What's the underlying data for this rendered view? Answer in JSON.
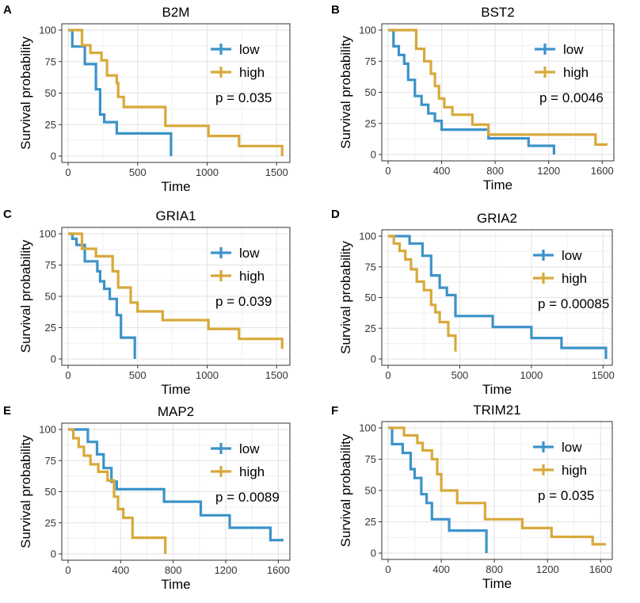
{
  "colors": {
    "low": "#3c93c9",
    "high": "#d8a93a",
    "grid": "#e6e6e6",
    "frame": "#333333",
    "text": "#000000"
  },
  "chart_data": [
    {
      "type": "line",
      "step": true,
      "panel": "A",
      "title": "B2M",
      "xlabel": "Time",
      "ylabel": "Survival probability",
      "xlim": [
        0,
        1550
      ],
      "ylim": [
        0,
        100
      ],
      "xticks": [
        0,
        500,
        1000,
        1500
      ],
      "yticks": [
        0,
        25,
        50,
        75,
        100
      ],
      "legend": "top-right",
      "pvalue": "p = 0.035",
      "series": [
        {
          "name": "low",
          "x": [
            0,
            30,
            120,
            200,
            230,
            260,
            300,
            350,
            740
          ],
          "y": [
            100,
            87,
            73,
            53,
            33,
            27,
            27,
            18,
            0
          ]
        },
        {
          "name": "high",
          "x": [
            0,
            100,
            160,
            240,
            280,
            350,
            360,
            400,
            700,
            1010,
            1230,
            1540
          ],
          "y": [
            100,
            88,
            82,
            76,
            64,
            58,
            47,
            39,
            24,
            16,
            8,
            0
          ]
        }
      ]
    },
    {
      "type": "line",
      "step": true,
      "panel": "B",
      "title": "BST2",
      "xlabel": "Time",
      "ylabel": "Survival probability",
      "xlim": [
        0,
        1640
      ],
      "ylim": [
        0,
        100
      ],
      "xticks": [
        0,
        400,
        800,
        1200,
        1600
      ],
      "yticks": [
        0,
        25,
        50,
        75,
        100
      ],
      "legend": "top-right",
      "pvalue": "p = 0.0046",
      "series": [
        {
          "name": "low",
          "x": [
            0,
            40,
            80,
            120,
            150,
            200,
            250,
            300,
            350,
            400,
            750,
            1050,
            1240
          ],
          "y": [
            100,
            87,
            80,
            73,
            60,
            47,
            40,
            33,
            27,
            20,
            13,
            7,
            0
          ]
        },
        {
          "name": "high",
          "x": [
            0,
            210,
            270,
            320,
            350,
            380,
            420,
            480,
            630,
            750,
            1550,
            1640
          ],
          "y": [
            100,
            85,
            75,
            65,
            55,
            45,
            38,
            32,
            24,
            16,
            8,
            8
          ]
        }
      ]
    },
    {
      "type": "line",
      "step": true,
      "panel": "C",
      "title": "GRIA1",
      "xlabel": "Time",
      "ylabel": "Survival probability",
      "xlim": [
        0,
        1550
      ],
      "ylim": [
        0,
        100
      ],
      "xticks": [
        0,
        500,
        1000,
        1500
      ],
      "yticks": [
        0,
        25,
        50,
        75,
        100
      ],
      "legend": "top-right",
      "pvalue": "p = 0.039",
      "series": [
        {
          "name": "low",
          "x": [
            0,
            30,
            60,
            120,
            210,
            230,
            260,
            300,
            350,
            380,
            480
          ],
          "y": [
            100,
            96,
            91,
            78,
            70,
            62,
            56,
            48,
            35,
            17,
            0
          ]
        },
        {
          "name": "high",
          "x": [
            0,
            100,
            200,
            320,
            360,
            450,
            500,
            680,
            1010,
            1230,
            1540
          ],
          "y": [
            100,
            88,
            82,
            70,
            57,
            45,
            38,
            31,
            24,
            16,
            8
          ]
        }
      ]
    },
    {
      "type": "line",
      "step": true,
      "panel": "D",
      "title": "GRIA2",
      "xlabel": "Time",
      "ylabel": "Survival probability",
      "xlim": [
        0,
        1520
      ],
      "ylim": [
        0,
        100
      ],
      "xticks": [
        0,
        500,
        1000,
        1500
      ],
      "yticks": [
        0,
        25,
        50,
        75,
        100
      ],
      "legend": "top-right",
      "pvalue": "p = 0.00085",
      "series": [
        {
          "name": "low",
          "x": [
            0,
            150,
            240,
            300,
            360,
            410,
            470,
            730,
            1000,
            1210,
            1520
          ],
          "y": [
            100,
            94,
            84,
            68,
            58,
            52,
            35,
            26,
            17,
            9,
            0
          ]
        },
        {
          "name": "high",
          "x": [
            0,
            40,
            80,
            120,
            160,
            200,
            250,
            300,
            330,
            360,
            420,
            470
          ],
          "y": [
            100,
            94,
            88,
            81,
            73,
            63,
            56,
            44,
            38,
            30,
            19,
            6
          ]
        }
      ]
    },
    {
      "type": "line",
      "step": true,
      "panel": "E",
      "title": "MAP2",
      "xlabel": "Time",
      "ylabel": "Survival probability",
      "xlim": [
        0,
        1640
      ],
      "ylim": [
        0,
        100
      ],
      "xticks": [
        0,
        400,
        800,
        1200,
        1600
      ],
      "yticks": [
        0,
        25,
        50,
        75,
        100
      ],
      "legend": "top-right",
      "pvalue": "p = 0.0089",
      "series": [
        {
          "name": "low",
          "x": [
            0,
            150,
            220,
            270,
            330,
            370,
            730,
            1010,
            1230,
            1540,
            1640
          ],
          "y": [
            100,
            90,
            80,
            69,
            58,
            52,
            42,
            31,
            21,
            11,
            11
          ]
        },
        {
          "name": "high",
          "x": [
            0,
            40,
            80,
            120,
            170,
            230,
            300,
            350,
            380,
            420,
            490,
            740
          ],
          "y": [
            100,
            93,
            86,
            79,
            72,
            66,
            59,
            46,
            36,
            29,
            13,
            0
          ]
        }
      ]
    },
    {
      "type": "line",
      "step": true,
      "panel": "F",
      "title": "TRIM21",
      "xlabel": "Time",
      "ylabel": "Survival probability",
      "xlim": [
        0,
        1640
      ],
      "ylim": [
        0,
        100
      ],
      "xticks": [
        0,
        400,
        800,
        1200,
        1600
      ],
      "yticks": [
        0,
        25,
        50,
        75,
        100
      ],
      "legend": "top-right",
      "pvalue": "p = 0.035",
      "series": [
        {
          "name": "low",
          "x": [
            0,
            30,
            110,
            170,
            200,
            250,
            290,
            330,
            460,
            740
          ],
          "y": [
            100,
            87,
            80,
            67,
            60,
            47,
            40,
            27,
            18,
            0
          ]
        },
        {
          "name": "high",
          "x": [
            0,
            120,
            220,
            260,
            330,
            370,
            400,
            520,
            730,
            1010,
            1230,
            1540,
            1640
          ],
          "y": [
            100,
            94,
            88,
            82,
            75,
            63,
            50,
            40,
            27,
            20,
            13,
            7,
            7
          ]
        }
      ]
    }
  ]
}
